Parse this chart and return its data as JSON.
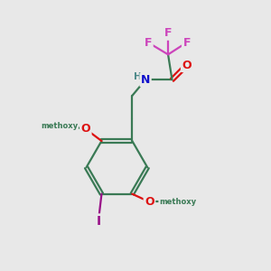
{
  "background_color": "#e8e8e8",
  "bond_color": "#3a7a55",
  "atom_colors": {
    "F": "#cc44bb",
    "O": "#dd1111",
    "N": "#1111cc",
    "H": "#4a8888",
    "I": "#991188",
    "C": "#3a7a55"
  },
  "figsize": [
    3.0,
    3.0
  ],
  "dpi": 100
}
